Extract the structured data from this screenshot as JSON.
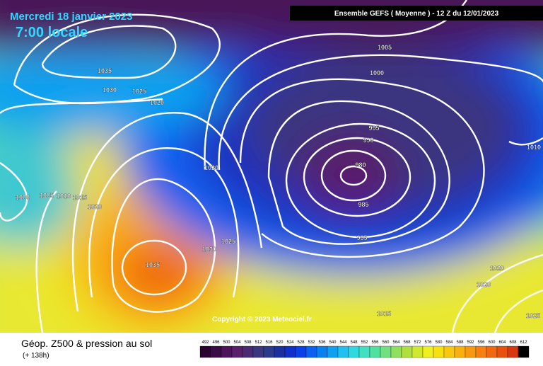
{
  "header": {
    "date": "Mercredi 18 janvier 2023",
    "time": "7:00 locale",
    "run": "Ensemble GEFS  ( Moyenne )  -  12 Z du 12/01/2023"
  },
  "copyright": "Copyright © 2023 Meteociel.fr",
  "footer": {
    "title": "Géop. Z500 & pression au sol",
    "lead": "(+ 138h)"
  },
  "isobar_labels": [
    "1035",
    "1030",
    "1025",
    "1020",
    "1005",
    "1000",
    "995",
    "990",
    "980",
    "985",
    "995",
    "1020",
    "1020",
    "1000",
    "1005",
    "1010",
    "1015",
    "1030",
    "1025",
    "1035",
    "1020",
    "1020",
    "1010",
    "1015",
    "1025"
  ],
  "legend": {
    "labels": [
      492,
      496,
      500,
      504,
      508,
      512,
      516,
      520,
      524,
      528,
      532,
      536,
      540,
      544,
      548,
      552,
      556,
      560,
      564,
      568,
      572,
      576,
      580,
      584,
      588,
      592,
      596,
      600,
      604,
      608,
      612
    ],
    "colors": [
      "#2a0030",
      "#3c0a46",
      "#4e145a",
      "#5a1e6a",
      "#4a2a70",
      "#3a3680",
      "#2c3a8c",
      "#1a30a0",
      "#1030c8",
      "#0a40e8",
      "#0a60f0",
      "#0a80f0",
      "#10a0f0",
      "#20c0f0",
      "#30d8e0",
      "#40e0c0",
      "#50e0a0",
      "#70e080",
      "#90e060",
      "#b0e040",
      "#d0e830",
      "#f0f020",
      "#f8e010",
      "#f8c810",
      "#f8b010",
      "#f89810",
      "#f88010",
      "#f06810",
      "#e85010",
      "#d83810",
      "#000000"
    ]
  }
}
